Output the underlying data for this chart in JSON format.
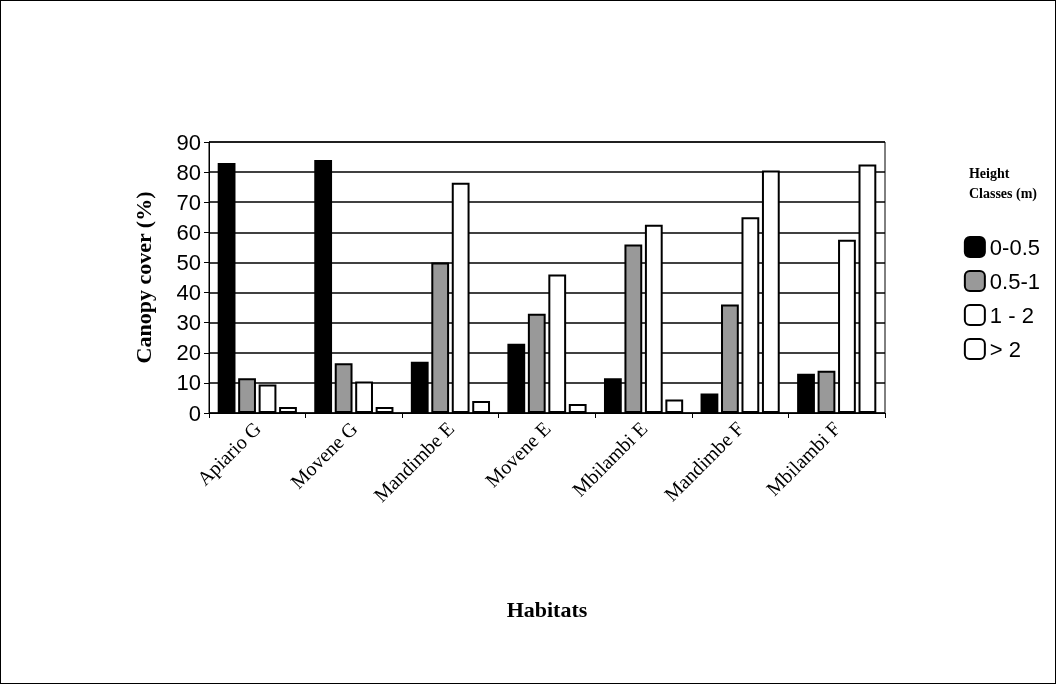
{
  "chart_data": {
    "type": "bar",
    "xlabel": "Habitats",
    "ylabel": "Canopy cover (%)",
    "legend_title": "Height Classes (m)",
    "categories": [
      "Apiario G",
      "Movene G",
      "Mandimbe E",
      "Movene E",
      "Mbilambi E",
      "Mandimbe F",
      "Mbilambi F"
    ],
    "series": [
      {
        "name": "0-0.5",
        "color": "#000000",
        "values": [
          83,
          84,
          17,
          23,
          11.5,
          6.5,
          13
        ]
      },
      {
        "name": "0.5-1",
        "color": "#999999",
        "values": [
          11.5,
          16.5,
          50,
          33,
          56,
          36,
          14
        ]
      },
      {
        "name": "1 - 2",
        "color": "#ffffff",
        "values": [
          9.5,
          10.5,
          76.5,
          46,
          62.5,
          65,
          57.5
        ]
      },
      {
        "name": "> 2",
        "color": "#ffffff",
        "values": [
          2,
          2,
          4,
          3,
          4.5,
          80.5,
          82.5
        ]
      }
    ],
    "ylim": [
      0,
      90
    ],
    "yticks": [
      0,
      10,
      20,
      30,
      40,
      50,
      60,
      70,
      80,
      90
    ],
    "grid": "y",
    "legend": "right"
  }
}
